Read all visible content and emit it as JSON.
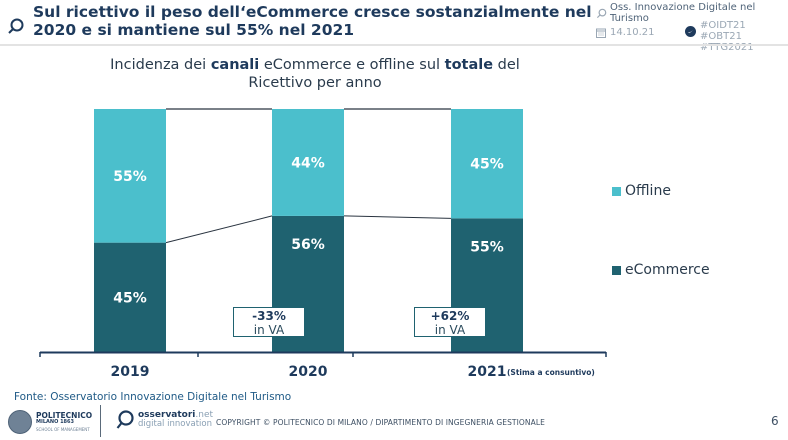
{
  "header": {
    "title_line1": "Sul ricettivo il peso dell‘eCommerce cresce sostanzialmente nel",
    "title_line2": "2020 e si mantiene sul 55% nel 2021",
    "source_label": "Oss. Innovazione Digitale nel Turismo",
    "date": "14.10.21",
    "hashtags": "#OIDT21 #OBT21 #TTG2021",
    "icons": {
      "title": "search-magnifier-icon",
      "source": "search-magnifier-icon",
      "date": "calendar-icon",
      "social": "twitter-icon"
    }
  },
  "chart_title": {
    "part1": "Incidenza dei ",
    "bold1": "canali",
    "part2": " eCommerce e offline sul ",
    "bold2": "totale",
    "part3": " del Ricettivo per anno"
  },
  "chart_data": {
    "type": "bar",
    "stacked": true,
    "title": "Incidenza dei canali eCommerce e offline sul totale del Ricettivo per anno",
    "categories": [
      "2019",
      "2020",
      "2021"
    ],
    "category_note": {
      "2021": "(Stima a consuntivo)"
    },
    "series": [
      {
        "name": "eCommerce",
        "color": "#1f6270",
        "values": [
          45,
          56,
          55
        ],
        "labels": [
          "45%",
          "56%",
          "55%"
        ]
      },
      {
        "name": "Offline",
        "color": "#4bbfcc",
        "values": [
          55,
          44,
          45
        ],
        "labels": [
          "55%",
          "44%",
          "45%"
        ]
      }
    ],
    "ylim": [
      0,
      100
    ],
    "grid": false,
    "legend_position": "right",
    "legend": [
      "Offline",
      "eCommerce"
    ],
    "annotations": [
      {
        "category": "2020",
        "value": "-33%",
        "text": "in VA"
      },
      {
        "category": "2021",
        "value": "+62%",
        "text": "in VA"
      }
    ]
  },
  "footer": {
    "source": "Fonte: Osservatorio Innovazione Digitale nel Turismo",
    "polimi_line1": "POLITECNICO",
    "polimi_line2": "MILANO 1863",
    "polimi_line3": "SCHOOL OF MANAGEMENT",
    "osserv_line1": "osservatori",
    "osserv_line1_suffix": ".net",
    "osserv_line2": "digital innovation",
    "copyright": "COPYRIGHT © POLITECNICO DI MILANO / DIPARTIMENTO DI INGEGNERIA GESTIONALE",
    "page_number": "6"
  }
}
